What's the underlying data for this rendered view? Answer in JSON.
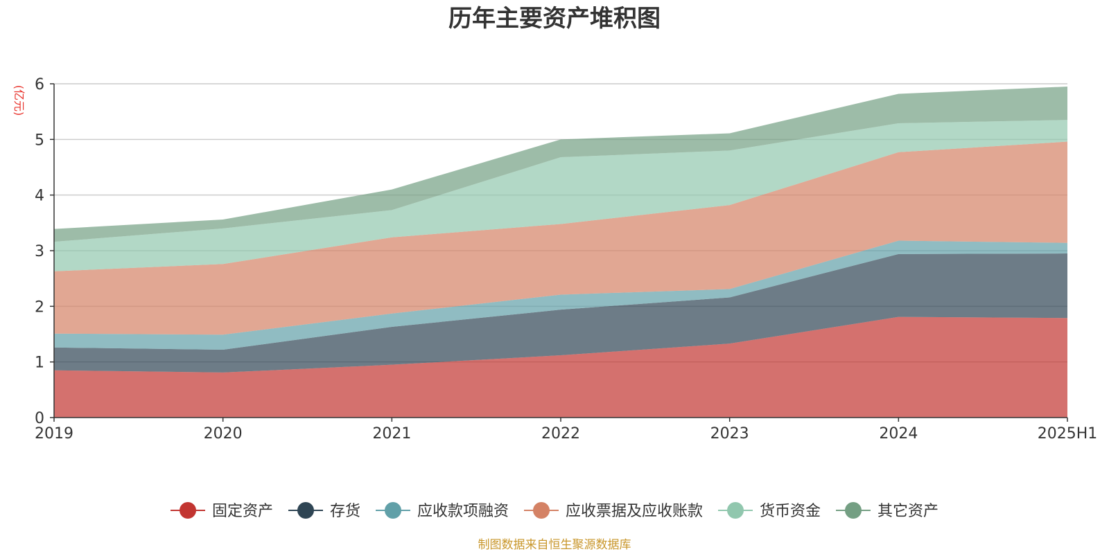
{
  "chart_data": {
    "type": "area",
    "stacked": true,
    "title": "历年主要资产堆积图",
    "ylabel": "(亿元)",
    "xlabel": "",
    "ylim": [
      0,
      6
    ],
    "yticks": [
      0,
      1,
      2,
      3,
      4,
      5,
      6
    ],
    "grid": true,
    "legend_position": "bottom",
    "categories": [
      "2019",
      "2020",
      "2021",
      "2022",
      "2023",
      "2024",
      "2025H1"
    ],
    "series": [
      {
        "name": "固定资产",
        "color": "#c23531",
        "values": [
          0.85,
          0.81,
          0.95,
          1.12,
          1.33,
          1.81,
          1.79
        ]
      },
      {
        "name": "存货",
        "color": "#2f4554",
        "values": [
          0.41,
          0.41,
          0.68,
          0.82,
          0.83,
          1.13,
          1.16
        ]
      },
      {
        "name": "应收款项融资",
        "color": "#61a0a8",
        "values": [
          0.25,
          0.27,
          0.24,
          0.27,
          0.15,
          0.24,
          0.19
        ]
      },
      {
        "name": "应收票据及应收账款",
        "color": "#d48265",
        "values": [
          1.12,
          1.27,
          1.37,
          1.27,
          1.51,
          1.59,
          1.82
        ]
      },
      {
        "name": "货币资金",
        "color": "#91c7ae",
        "values": [
          0.53,
          0.64,
          0.49,
          1.2,
          0.98,
          0.52,
          0.39
        ]
      },
      {
        "name": "其它资产",
        "color": "#749f83",
        "values": [
          0.23,
          0.16,
          0.37,
          0.32,
          0.31,
          0.53,
          0.6
        ]
      }
    ],
    "source": "制图数据来自恒生聚源数据库"
  }
}
